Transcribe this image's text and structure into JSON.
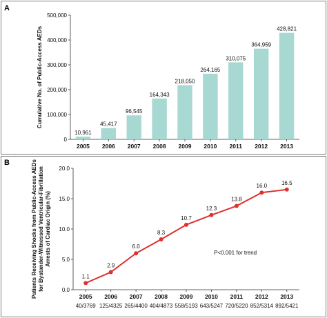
{
  "chart_data": [
    {
      "panel": "A",
      "type": "bar",
      "categories": [
        "2005",
        "2006",
        "2007",
        "2008",
        "2009",
        "2010",
        "2011",
        "2012",
        "2013"
      ],
      "values": [
        10961,
        45417,
        96545,
        164343,
        218050,
        264165,
        310075,
        364959,
        428821
      ],
      "value_labels": [
        "10,961",
        "45,417",
        "96,545",
        "164,343",
        "218,050",
        "264,165",
        "310,075",
        "364,959",
        "428,821"
      ],
      "ylabel": "Cumulative No. of Public-Access AEDs",
      "ylim": [
        0,
        500000
      ],
      "yticks": [
        0,
        100000,
        200000,
        300000,
        400000,
        500000
      ],
      "ytick_labels": [
        "0",
        "100,000",
        "200,000",
        "300,000",
        "400,000",
        "500,000"
      ],
      "bar_color": "#a8d8d2",
      "grid": false
    },
    {
      "panel": "B",
      "type": "line",
      "categories": [
        "2005",
        "2006",
        "2007",
        "2008",
        "2009",
        "2010",
        "2011",
        "2012",
        "2013"
      ],
      "values": [
        1.1,
        2.9,
        6.0,
        8.3,
        10.7,
        12.3,
        13.8,
        16.0,
        16.5
      ],
      "value_labels": [
        "1.1",
        "2.9",
        "6.0",
        "8.3",
        "10.7",
        "12.3",
        "13.8",
        "16.0",
        "16.5"
      ],
      "x_sublabels": [
        "40/3769",
        "125/4325",
        "265/4400",
        "404/4873",
        "558/5193",
        "643/5247",
        "720/5220",
        "852/5314",
        "892/5421"
      ],
      "ylabel_lines": [
        "Patients Receiving Shocks from Public-Access AEDs",
        "for Bystander-Witnessed Ventricular-Fibrillation",
        "Arrests of Cardiac Origin (%)"
      ],
      "ylim": [
        0,
        20
      ],
      "yticks": [
        0,
        5,
        10,
        15,
        20
      ],
      "ytick_labels": [
        "0.0",
        "5.0",
        "10.0",
        "15.0",
        "20.0"
      ],
      "annotation": "P<0.001 for trend",
      "line_color": "#e0302e",
      "grid": false
    }
  ]
}
